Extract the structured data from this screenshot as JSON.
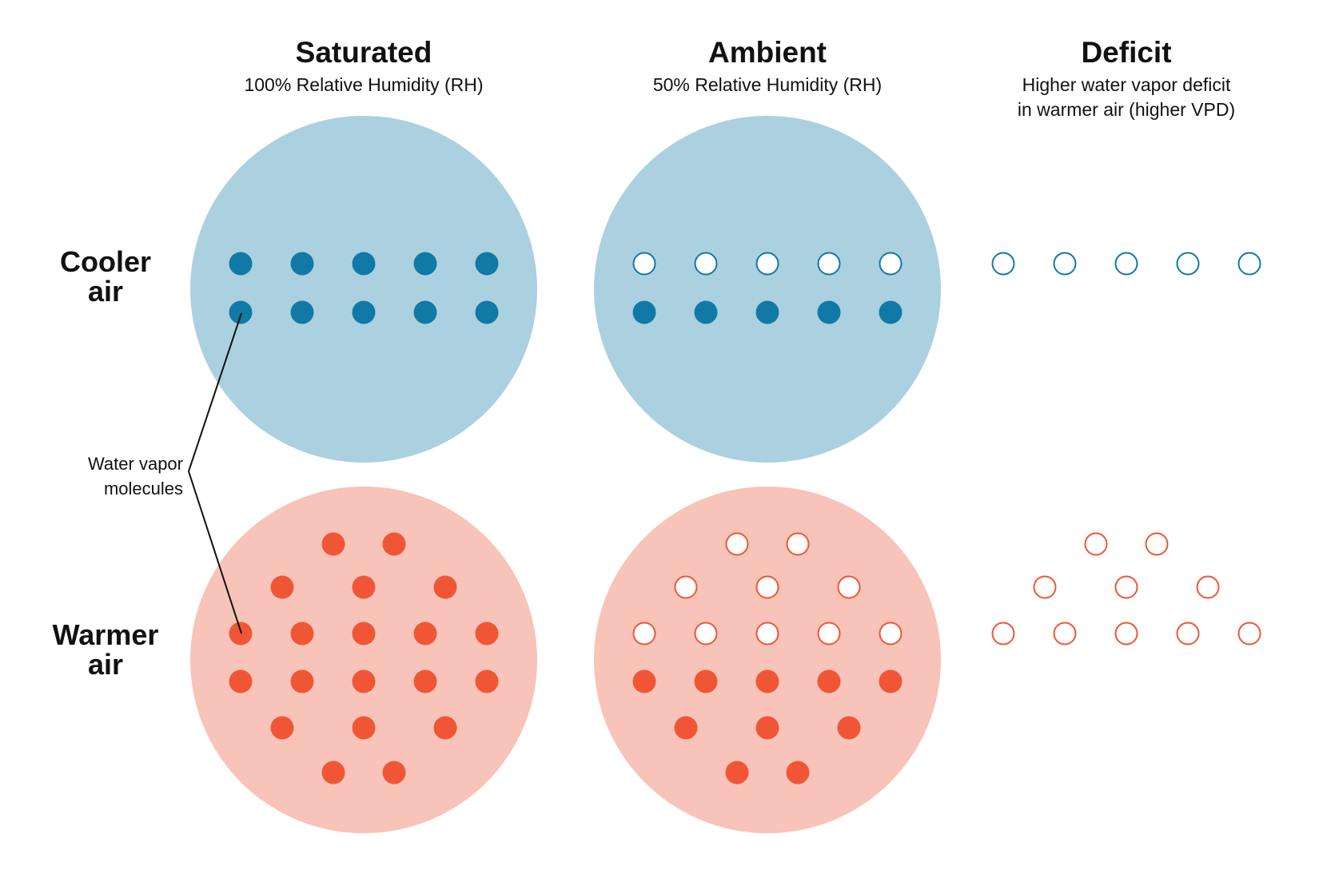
{
  "columns": [
    {
      "id": "saturated",
      "title": "Saturated",
      "subtitle_lines": [
        "100% Relative Humidity (RH)"
      ]
    },
    {
      "id": "ambient",
      "title": "Ambient",
      "subtitle_lines": [
        "50% Relative Humidity (RH)"
      ]
    },
    {
      "id": "deficit",
      "title": "Deficit",
      "subtitle_lines": [
        "Higher water vapor deficit",
        "in warmer air (higher VPD)"
      ]
    }
  ],
  "rows": [
    {
      "id": "cooler",
      "label_lines": [
        "Cooler",
        "air"
      ]
    },
    {
      "id": "warmer",
      "label_lines": [
        "Warmer",
        "air"
      ]
    }
  ],
  "annotation": {
    "label_lines": [
      "Water vapor",
      "molecules"
    ]
  },
  "molecule_counts": {
    "cooler": {
      "saturated": 10,
      "ambient_filled": 5,
      "ambient_empty": 5,
      "deficit": 5
    },
    "warmer": {
      "saturated": 20,
      "ambient_filled": 10,
      "ambient_empty": 10,
      "deficit": 10
    }
  },
  "colors": {
    "cool_circle": "#abd0df",
    "cool_molecule": "#1179a5",
    "warm_circle": "#f8c3b8",
    "warm_molecule": "#f05636",
    "text": "#111111",
    "background": "#ffffff"
  }
}
